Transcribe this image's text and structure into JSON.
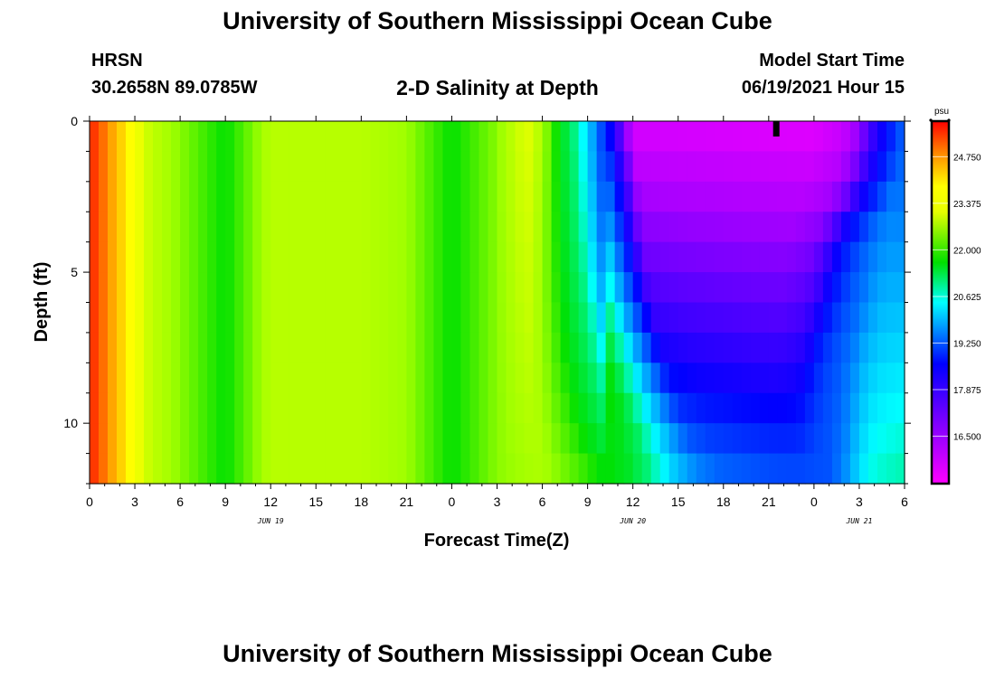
{
  "header": {
    "title": "University of Southern Mississippi Ocean Cube",
    "station": "HRSN",
    "coords": "30.2658N  89.0785W",
    "subtitle": "2-D Salinity at Depth",
    "start_label": "Model Start Time",
    "start_value": "06/19/2021 Hour 15"
  },
  "footer": {
    "title": "University of Southern Mississippi Ocean Cube"
  },
  "chart_data": {
    "type": "heatmap",
    "title": "2-D Salinity at Depth",
    "xlabel": "Forecast Time(Z)",
    "ylabel": "Depth (ft)",
    "x_unit": "hours since Jun 19 00Z",
    "xlim": [
      0,
      54
    ],
    "ylim": [
      0,
      12
    ],
    "y_ticks": [
      0,
      5,
      10
    ],
    "x_tick_labels": [
      "0",
      "3",
      "6",
      "9",
      "12",
      "15",
      "18",
      "21",
      "0",
      "3",
      "6",
      "9",
      "12",
      "15",
      "18",
      "21",
      "0",
      "3",
      "6"
    ],
    "date_labels": [
      {
        "label": "JUN 19",
        "hour": 12
      },
      {
        "label": "JUN 20",
        "hour": 36
      },
      {
        "label": "JUN 21",
        "hour": 51
      }
    ],
    "current_time_marker_hour": 45.5,
    "colorbar": {
      "unit": "psu",
      "min": 15.1,
      "max": 25.8,
      "ticks": [
        "24.750",
        "23.375",
        "22.000",
        "20.625",
        "19.250",
        "17.875",
        "16.500"
      ]
    },
    "profiles": {
      "depths_ft": [
        0,
        2,
        4,
        6,
        8,
        10,
        12
      ],
      "surface_hours": [
        0,
        1,
        2,
        3,
        4,
        6,
        9,
        12,
        15,
        18,
        21,
        24,
        27,
        29,
        30,
        31,
        32,
        33,
        34,
        35,
        36,
        48,
        50,
        51,
        52,
        53,
        54
      ],
      "surface_salinity": [
        25.6,
        25.0,
        24.3,
        23.6,
        23.0,
        22.6,
        22.0,
        22.9,
        22.9,
        22.9,
        22.7,
        22.0,
        22.6,
        23.3,
        22.8,
        22.0,
        21.2,
        20.3,
        19.0,
        17.5,
        15.7,
        15.5,
        15.9,
        16.6,
        17.8,
        18.6,
        19.2
      ],
      "deep_hours": [
        0,
        1,
        2,
        3,
        4,
        6,
        9,
        12,
        15,
        18,
        21,
        24,
        27,
        30,
        33,
        36,
        38,
        39,
        40,
        42,
        45,
        48,
        49,
        50,
        51,
        52,
        54
      ],
      "deep_salinity": [
        25.6,
        25.0,
        24.3,
        23.6,
        23.0,
        22.6,
        22.0,
        22.9,
        22.9,
        22.9,
        22.7,
        22.0,
        22.6,
        22.8,
        22.3,
        21.7,
        20.7,
        20.2,
        19.9,
        19.5,
        19.3,
        19.2,
        19.2,
        19.7,
        20.4,
        20.8,
        21.0
      ],
      "front_hours_by_depth": [
        34,
        34.5,
        35,
        35.7,
        36.8,
        38.2,
        39.8
      ],
      "back_hours_by_depth": [
        53.3,
        52.6,
        50.6,
        49.8,
        48.9,
        48.6,
        48.4
      ]
    }
  }
}
